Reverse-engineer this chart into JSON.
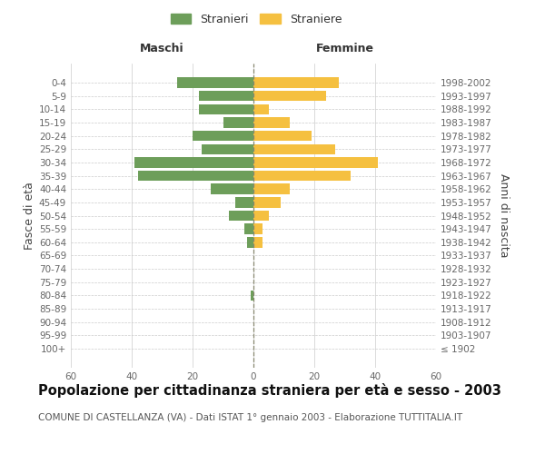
{
  "age_groups": [
    "100+",
    "95-99",
    "90-94",
    "85-89",
    "80-84",
    "75-79",
    "70-74",
    "65-69",
    "60-64",
    "55-59",
    "50-54",
    "45-49",
    "40-44",
    "35-39",
    "30-34",
    "25-29",
    "20-24",
    "15-19",
    "10-14",
    "5-9",
    "0-4"
  ],
  "birth_years": [
    "≤ 1902",
    "1903-1907",
    "1908-1912",
    "1913-1917",
    "1918-1922",
    "1923-1927",
    "1928-1932",
    "1933-1937",
    "1938-1942",
    "1943-1947",
    "1948-1952",
    "1953-1957",
    "1958-1962",
    "1963-1967",
    "1968-1972",
    "1973-1977",
    "1978-1982",
    "1983-1987",
    "1988-1992",
    "1993-1997",
    "1998-2002"
  ],
  "males": [
    0,
    0,
    0,
    0,
    1,
    0,
    0,
    0,
    2,
    3,
    8,
    6,
    14,
    38,
    39,
    17,
    20,
    10,
    18,
    18,
    25
  ],
  "females": [
    0,
    0,
    0,
    0,
    0,
    0,
    0,
    0,
    3,
    3,
    5,
    9,
    12,
    32,
    41,
    27,
    19,
    12,
    5,
    24,
    28
  ],
  "male_color": "#6d9e5a",
  "female_color": "#f5c040",
  "dashed_line_color": "#888870",
  "grid_color": "#cccccc",
  "bg_color": "#ffffff",
  "title": "Popolazione per cittadinanza straniera per età e sesso - 2003",
  "subtitle": "COMUNE DI CASTELLANZA (VA) - Dati ISTAT 1° gennaio 2003 - Elaborazione TUTTITALIA.IT",
  "xlabel_left": "Maschi",
  "xlabel_right": "Femmine",
  "ylabel_left": "Fasce di età",
  "ylabel_right": "Anni di nascita",
  "legend_male": "Stranieri",
  "legend_female": "Straniere",
  "xlim": 60,
  "title_fontsize": 10.5,
  "subtitle_fontsize": 7.5,
  "tick_fontsize": 7.5,
  "label_fontsize": 9
}
